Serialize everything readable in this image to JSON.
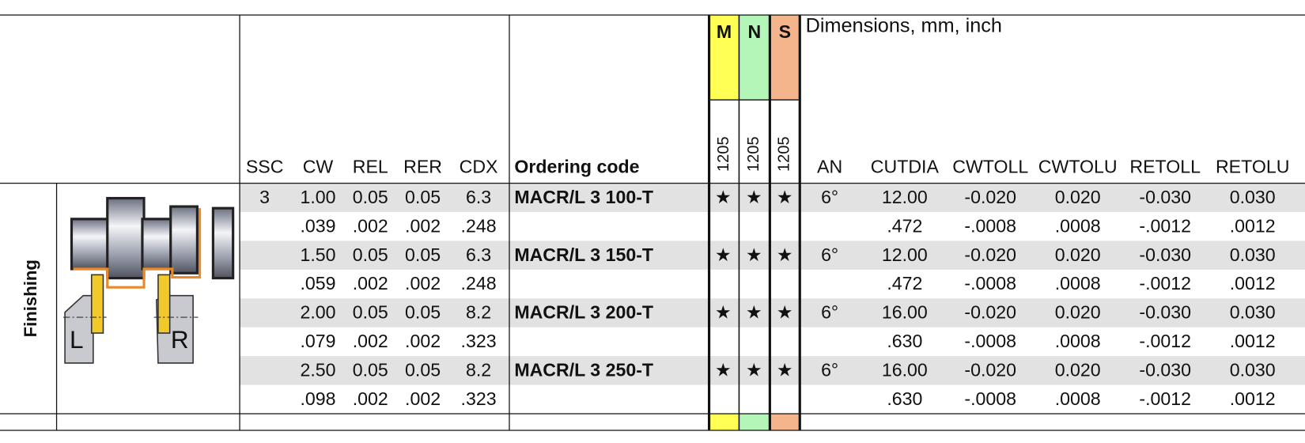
{
  "header": {
    "columns": [
      "SSC",
      "CW",
      "REL",
      "RER",
      "CDX",
      "Ordering code"
    ],
    "materials": [
      {
        "code": "M",
        "grade": "1205",
        "color": "#ffff55"
      },
      {
        "code": "N",
        "grade": "1205",
        "color": "#b4f5b8"
      },
      {
        "code": "S",
        "grade": "1205",
        "color": "#f5b58c"
      }
    ],
    "dimensions_title": "Dimensions, mm, inch",
    "dimension_columns": [
      "AN",
      "CUTDIA",
      "CWTOLL",
      "CWTOLU",
      "RETOLL",
      "RETOLU"
    ]
  },
  "section": "Finishing",
  "image_labels": [
    "L",
    "R"
  ],
  "rows": [
    [
      "3",
      "1.00",
      "0.05",
      "0.05",
      "6.3",
      "MACR/L 3 100-T",
      "★",
      "★",
      "★",
      "6°",
      "12.00",
      "-0.020",
      "0.020",
      "-0.030",
      "0.030"
    ],
    [
      null,
      ".039",
      ".002",
      ".002",
      ".248",
      null,
      null,
      null,
      null,
      null,
      ".472",
      "-.0008",
      ".0008",
      "-.0012",
      ".0012"
    ],
    [
      null,
      "1.50",
      "0.05",
      "0.05",
      "6.3",
      "MACR/L 3 150-T",
      "★",
      "★",
      "★",
      "6°",
      "12.00",
      "-0.020",
      "0.020",
      "-0.030",
      "0.030"
    ],
    [
      null,
      ".059",
      ".002",
      ".002",
      ".248",
      null,
      null,
      null,
      null,
      null,
      ".472",
      "-.0008",
      ".0008",
      "-.0012",
      ".0012"
    ],
    [
      null,
      "2.00",
      "0.05",
      "0.05",
      "8.2",
      "MACR/L 3 200-T",
      "★",
      "★",
      "★",
      "6°",
      "16.00",
      "-0.020",
      "0.020",
      "-0.030",
      "0.030"
    ],
    [
      null,
      ".079",
      ".002",
      ".002",
      ".323",
      null,
      null,
      null,
      null,
      null,
      ".630",
      "-.0008",
      ".0008",
      "-.0012",
      ".0012"
    ],
    [
      null,
      "2.50",
      "0.05",
      "0.05",
      "8.2",
      "MACR/L 3 250-T",
      "★",
      "★",
      "★",
      "6°",
      "16.00",
      "-0.020",
      "0.020",
      "-0.030",
      "0.030"
    ],
    [
      null,
      ".098",
      ".002",
      ".002",
      ".323",
      null,
      null,
      null,
      null,
      null,
      ".630",
      "-.0008",
      ".0008",
      "-.0012",
      ".0012"
    ]
  ]
}
